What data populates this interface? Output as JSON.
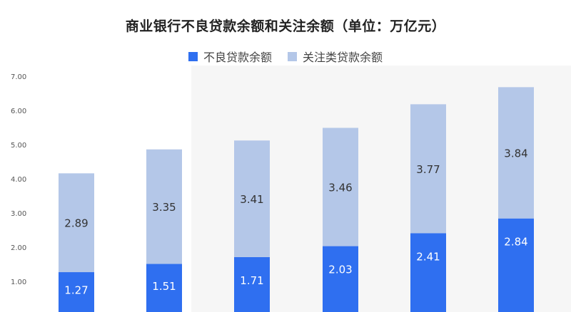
{
  "chart_data": {
    "type": "bar",
    "stacked": true,
    "title": "商业银行不良贷款余额和关注余额（单位：万亿元）",
    "xlabel": "",
    "ylabel": "",
    "ylim": [
      0,
      7
    ],
    "yticks": [
      "1.00",
      "2.00",
      "3.00",
      "4.00",
      "5.00",
      "6.00",
      "7.00"
    ],
    "grid": false,
    "legend_position": "top-center",
    "categories": [
      "",
      "",
      "",
      "",
      "",
      ""
    ],
    "series": [
      {
        "name": "不良贷款余额",
        "color": "#2f6ff0",
        "label_color": "#ffffff",
        "values": [
          1.27,
          1.51,
          1.71,
          2.03,
          2.41,
          2.84
        ]
      },
      {
        "name": "关注类贷款余额",
        "color": "#b4c7e8",
        "label_color": "#333333",
        "values": [
          2.89,
          3.35,
          3.41,
          3.46,
          3.77,
          3.84
        ]
      }
    ]
  }
}
